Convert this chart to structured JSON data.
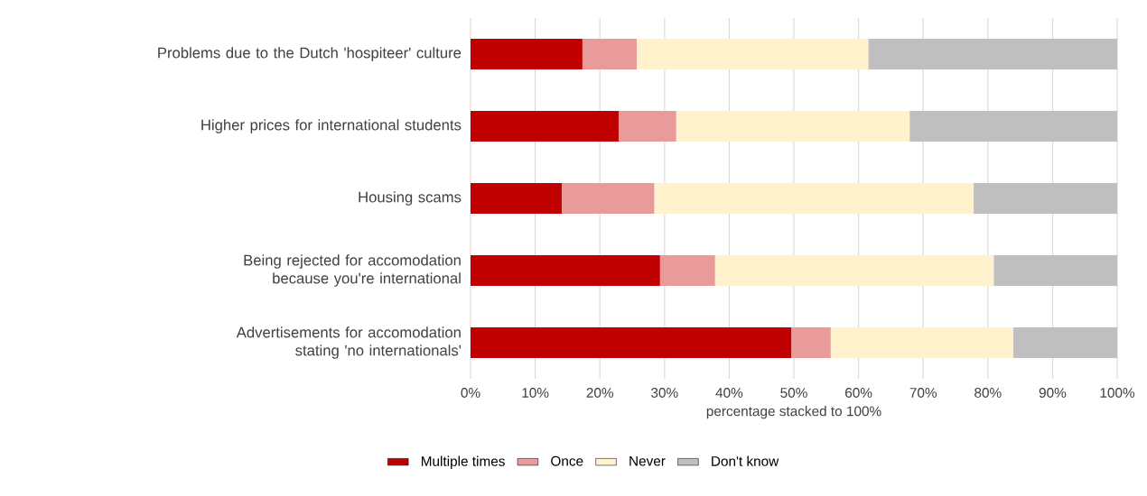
{
  "chart_data": {
    "type": "bar",
    "orientation": "horizontal",
    "stacked": true,
    "xlabel": "percentage stacked to 100%",
    "categories": [
      "Problems due to the Dutch 'hospiteer' culture",
      "Higher prices for international students",
      "Housing scams",
      "Being rejected for accomodation because you're international",
      "Advertisements for accomodation stating 'no internationals'"
    ],
    "series": [
      {
        "name": "Multiple times",
        "color": "#c00000",
        "values": [
          17.3,
          22.9,
          14.1,
          29.3,
          49.6
        ]
      },
      {
        "name": "Once",
        "color": "#e99b9b",
        "values": [
          8.4,
          8.9,
          14.3,
          8.5,
          6.1
        ]
      },
      {
        "name": "Never",
        "color": "#fff2cc",
        "values": [
          35.8,
          36.1,
          49.4,
          43.1,
          28.2
        ]
      },
      {
        "name": "Don't know",
        "color": "#bfbfbf",
        "values": [
          38.5,
          32.1,
          22.2,
          19.1,
          16.1
        ]
      }
    ],
    "xlim": [
      0,
      100
    ],
    "xticks": [
      {
        "value": 0,
        "label": "0%"
      },
      {
        "value": 10,
        "label": "10%"
      },
      {
        "value": 20,
        "label": "20%"
      },
      {
        "value": 30,
        "label": "30%"
      },
      {
        "value": 40,
        "label": "40%"
      },
      {
        "value": 50,
        "label": "50%"
      },
      {
        "value": 60,
        "label": "60%"
      },
      {
        "value": 70,
        "label": "70%"
      },
      {
        "value": 80,
        "label": "80%"
      },
      {
        "value": 90,
        "label": "90%"
      },
      {
        "value": 100,
        "label": "100%"
      }
    ],
    "grid": "x",
    "legend": "bottom"
  }
}
